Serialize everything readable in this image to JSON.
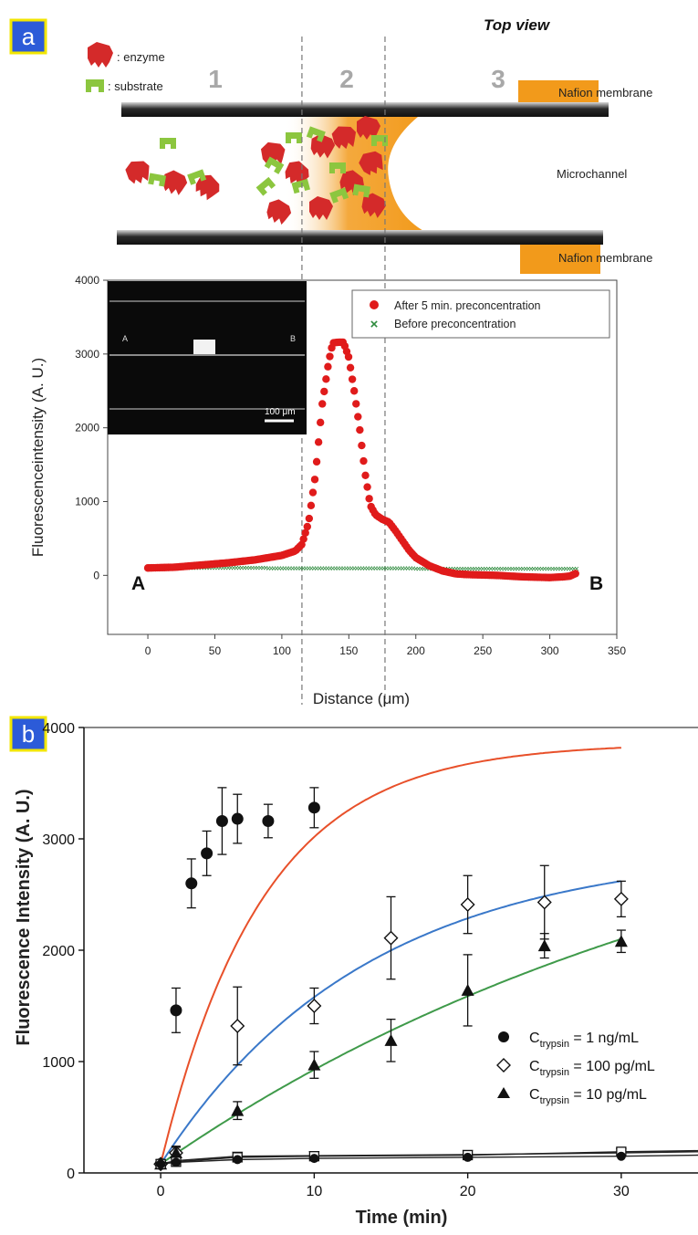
{
  "panel_a": {
    "label": "a",
    "view_title": "Top view",
    "legend_enzyme": ": enzyme",
    "legend_substrate": ": substrate",
    "zones": [
      "1",
      "2",
      "3"
    ],
    "membrane_top": "Nafion membrane",
    "membrane_bottom": "Nafion membrane",
    "channel_label": "Microchannel",
    "inset_point_a": "A",
    "inset_point_b": "B",
    "inset_scale": "100 μm"
  },
  "panel_b": {
    "label": "b"
  },
  "colors": {
    "label_box": "#2c5bd8",
    "label_border": "#f2e600",
    "enzyme": "#d42a2a",
    "substrate": "#8cc63f",
    "preconc": "#f29a1b",
    "red_series": "#e01b1b",
    "green_series": "#2e8b3e",
    "fit_1ng": "#e8502a",
    "fit_100pg": "#3a78c9",
    "fit_10pg": "#3f9a4a"
  },
  "chart_data": [
    {
      "type": "scatter",
      "xlabel": "Distance (μm)",
      "ylabel": "Fluorescenceintensity (A. U.)",
      "xlim": [
        -30,
        350
      ],
      "ylim": [
        -800,
        4000
      ],
      "xticks": [
        0,
        50,
        100,
        150,
        200,
        250,
        300,
        350
      ],
      "yticks": [
        0,
        1000,
        2000,
        3000,
        4000
      ],
      "legend_position": "top-right",
      "endpoint_left": "A",
      "endpoint_right": "B",
      "vlines": [
        115,
        177
      ],
      "series": [
        {
          "name": "After 5 min. preconcentration",
          "marker": "circle",
          "x": [
            0,
            20,
            40,
            60,
            80,
            100,
            110,
            115,
            120,
            125,
            130,
            135,
            138,
            142,
            146,
            150,
            154,
            158,
            162,
            166,
            170,
            175,
            180,
            185,
            190,
            195,
            200,
            210,
            220,
            230,
            240,
            260,
            280,
            300,
            310,
            315,
            320
          ],
          "y": [
            100,
            110,
            140,
            170,
            210,
            270,
            330,
            420,
            720,
            1350,
            2300,
            2900,
            3150,
            3160,
            3160,
            2950,
            2500,
            2000,
            1400,
            950,
            820,
            760,
            720,
            600,
            470,
            340,
            240,
            130,
            60,
            20,
            10,
            0,
            -20,
            -30,
            -20,
            -10,
            30
          ]
        },
        {
          "name": "Before preconcentration",
          "marker": "x",
          "x": [
            0,
            50,
            100,
            150,
            200,
            250,
            300,
            320
          ],
          "y": [
            110,
            110,
            105,
            105,
            100,
            100,
            100,
            95
          ]
        }
      ]
    },
    {
      "type": "scatter",
      "xlabel": "Time (min)",
      "ylabel": "Fluorescence Intensity (A. U.)",
      "xlim": [
        -5,
        35
      ],
      "ylim": [
        0,
        4000
      ],
      "xticks": [
        0,
        10,
        20,
        30
      ],
      "yticks": [
        0,
        1000,
        2000,
        3000,
        4000
      ],
      "legend_position": "center-right",
      "series": [
        {
          "name": "Ctrypsin = 1 ng/mL",
          "name_main": "C",
          "name_sub": "trypsin",
          "name_rest": " = 1 ng/mL",
          "marker": "filled-circle",
          "x": [
            0,
            1,
            2,
            3,
            4,
            5,
            7,
            10
          ],
          "y": [
            80,
            1460,
            2600,
            2870,
            3160,
            3180,
            3160,
            3280
          ],
          "err": [
            0,
            200,
            220,
            200,
            300,
            220,
            150,
            180
          ],
          "fit": {
            "a": 3780,
            "k": 0.15,
            "offset": 80
          }
        },
        {
          "name": "Ctrypsin = 100 pg/mL",
          "name_main": "C",
          "name_sub": "trypsin",
          "name_rest": " = 100 pg/mL",
          "marker": "open-diamond",
          "x": [
            0,
            1,
            5,
            10,
            15,
            20,
            25,
            30
          ],
          "y": [
            80,
            180,
            1320,
            1500,
            2110,
            2410,
            2430,
            2460
          ],
          "err": [
            0,
            60,
            350,
            160,
            370,
            260,
            330,
            160
          ],
          "fit": {
            "a": 2840,
            "k": 0.075,
            "offset": 80
          }
        },
        {
          "name": "Ctrypsin = 10 pg/mL",
          "name_main": "C",
          "name_sub": "trypsin",
          "name_rest": " = 10 pg/mL",
          "marker": "filled-triangle",
          "x": [
            0,
            1,
            5,
            10,
            15,
            20,
            25,
            30
          ],
          "y": [
            80,
            180,
            560,
            970,
            1190,
            1640,
            2040,
            2080
          ],
          "err": [
            0,
            50,
            80,
            120,
            190,
            320,
            110,
            100
          ],
          "fit": {
            "a": 3830,
            "k": 0.025,
            "offset": 80
          }
        },
        {
          "name": "",
          "marker": "filled-triangle-down",
          "x": [
            0,
            1,
            5,
            10,
            20,
            30
          ],
          "y": [
            80,
            110,
            150,
            155,
            165,
            180
          ],
          "err": [
            0,
            0,
            0,
            0,
            0,
            0
          ],
          "fit": null
        },
        {
          "name": "",
          "marker": "open-square",
          "x": [
            0,
            1,
            5,
            10,
            20,
            30
          ],
          "y": [
            80,
            100,
            140,
            150,
            160,
            190
          ],
          "err": [
            0,
            0,
            0,
            0,
            0,
            0
          ],
          "fit": null
        },
        {
          "name": "",
          "marker": "filled-circle-small",
          "x": [
            0,
            1,
            5,
            10,
            20,
            30
          ],
          "y": [
            80,
            95,
            120,
            130,
            140,
            150
          ],
          "err": [
            0,
            0,
            0,
            0,
            0,
            0
          ],
          "fit": null
        }
      ]
    }
  ]
}
